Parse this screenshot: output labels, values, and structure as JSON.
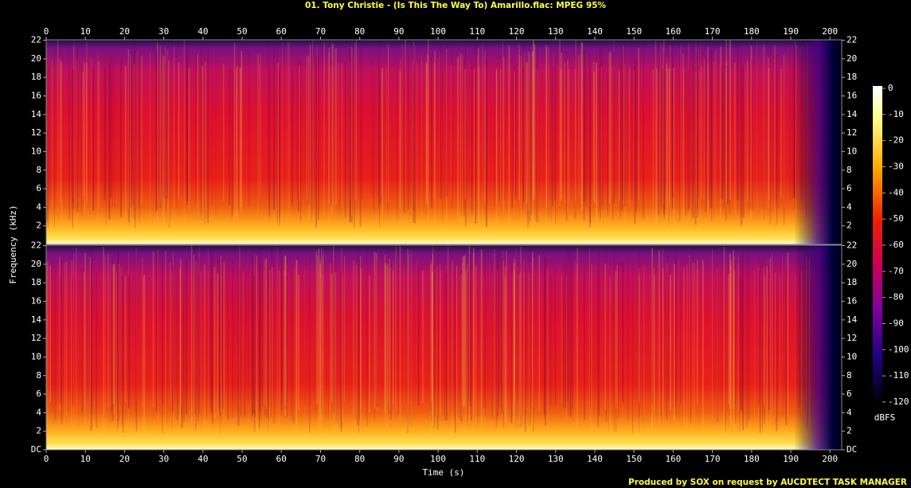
{
  "chart_data": {
    "type": "spectrogram",
    "title": "01. Tony Christie - (Is This The Way To) Amarillo.flac: MPEG 95%",
    "x_label": "Time (s)",
    "y_label": "Frequency (kHz)",
    "footer": "Produced by SOX on request by AUCDTECT TASK MANAGER",
    "xlim": [
      0,
      203
    ],
    "xticks": [
      0,
      10,
      20,
      30,
      40,
      50,
      60,
      70,
      80,
      90,
      100,
      110,
      120,
      130,
      140,
      150,
      160,
      170,
      180,
      190,
      200
    ],
    "panels": [
      {
        "ylim": [
          0,
          22.05
        ],
        "yticks": [
          2,
          4,
          6,
          8,
          10,
          12,
          14,
          16,
          18,
          20,
          22
        ]
      },
      {
        "ylim": [
          0,
          22.05
        ],
        "yticks": [
          {
            "value": 0,
            "label": "DC"
          },
          2,
          4,
          6,
          8,
          10,
          12,
          14,
          16,
          18,
          20,
          22
        ]
      }
    ],
    "colorbar": {
      "label": "dBFS",
      "lim": [
        -120,
        0
      ],
      "ticks": [
        0,
        -10,
        -20,
        -30,
        -40,
        -50,
        -60,
        -70,
        -80,
        -90,
        -100,
        -110,
        -120
      ]
    }
  }
}
